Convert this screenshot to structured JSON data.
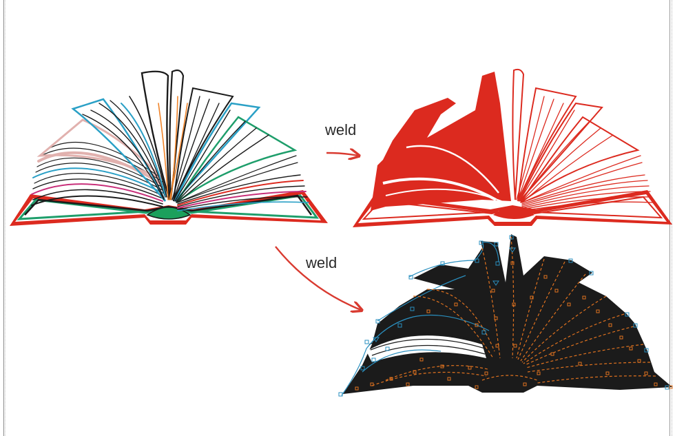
{
  "labels": {
    "weld_top": "weld",
    "weld_bottom": "weld"
  },
  "colors": {
    "arrow": "#d93a30",
    "result_fill": "#dc2a1f",
    "outline_dark": "#1b1b1b",
    "node_orange": "#e2731f",
    "node_blue": "#2a8fbf",
    "page_teal": "#2aa0c6",
    "page_green": "#1e9e6b",
    "page_pink": "#e1b1ae",
    "page_magenta": "#c82f7a",
    "page_orange": "#f08328",
    "spine_green": "#1ca05c",
    "cover_red": "#dc2a1f"
  },
  "icons": {
    "source": "open-book-multicolor",
    "result": "open-book-welded-red",
    "nodes": "open-book-node-edit"
  }
}
